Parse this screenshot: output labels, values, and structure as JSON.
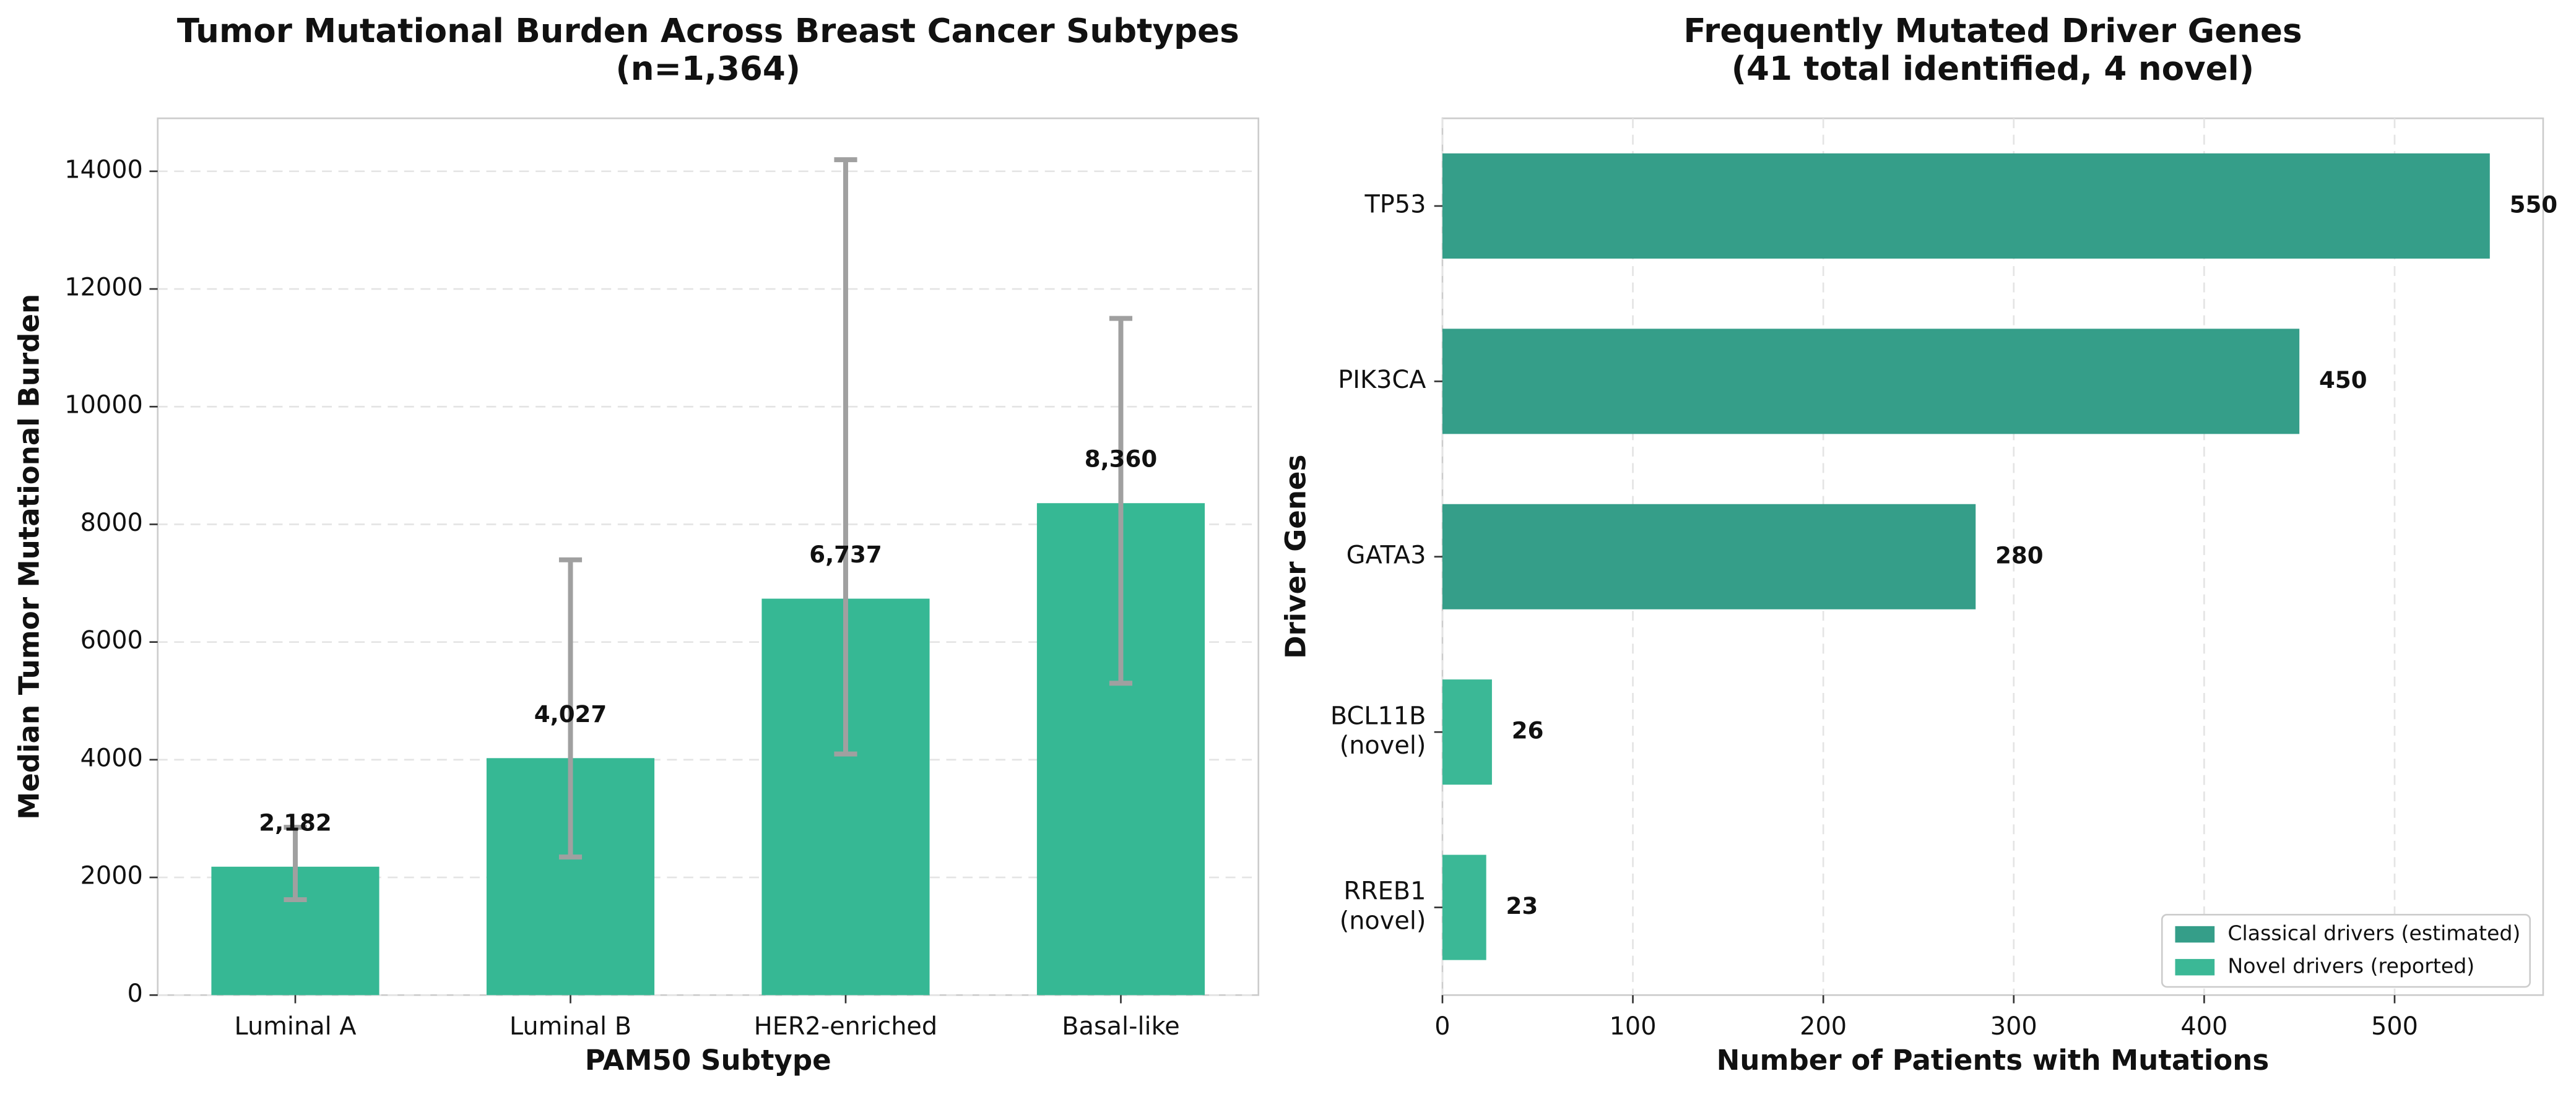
{
  "chart_data": [
    {
      "type": "bar",
      "title": [
        "Tumor Mutational Burden Across Breast Cancer Subtypes",
        "(n=1,364)"
      ],
      "xlabel": "PAM50 Subtype",
      "ylabel": "Median Tumor Mutational Burden",
      "categories": [
        "Luminal A",
        "Luminal B",
        "HER2-enriched",
        "Basal-like"
      ],
      "values": [
        2182,
        4027,
        6737,
        8360
      ],
      "value_labels": [
        "2,182",
        "4,027",
        "6,737",
        "8,360"
      ],
      "error_low": [
        560,
        1680,
        2640,
        3060
      ],
      "error_high": [
        670,
        3370,
        7460,
        3140
      ],
      "color": "#36b894",
      "error_color": "#a0a0a0",
      "ylim": [
        0,
        14900
      ],
      "yticks": [
        0,
        2000,
        4000,
        6000,
        8000,
        10000,
        12000,
        14000
      ],
      "grid": true
    },
    {
      "type": "barh",
      "title": [
        "Frequently Mutated Driver Genes",
        "(41 total identified, 4 novel)"
      ],
      "xlabel": "Number of Patients with Mutations",
      "ylabel": "Driver Genes",
      "categories": [
        "TP53",
        "PIK3CA",
        "GATA3",
        "BCL11B\n(novel)",
        "RREB1\n(novel)"
      ],
      "series": [
        {
          "name": "Classical drivers (estimated)",
          "color": "#359e89",
          "values": [
            550,
            450,
            280,
            null,
            null
          ]
        },
        {
          "name": "Novel drivers (reported)",
          "color": "#3bb896",
          "values": [
            null,
            null,
            null,
            26,
            23
          ]
        }
      ],
      "xlim": [
        0,
        578
      ],
      "xticks": [
        0,
        100,
        200,
        300,
        400,
        500
      ],
      "grid": true,
      "legend": "lower right"
    }
  ]
}
